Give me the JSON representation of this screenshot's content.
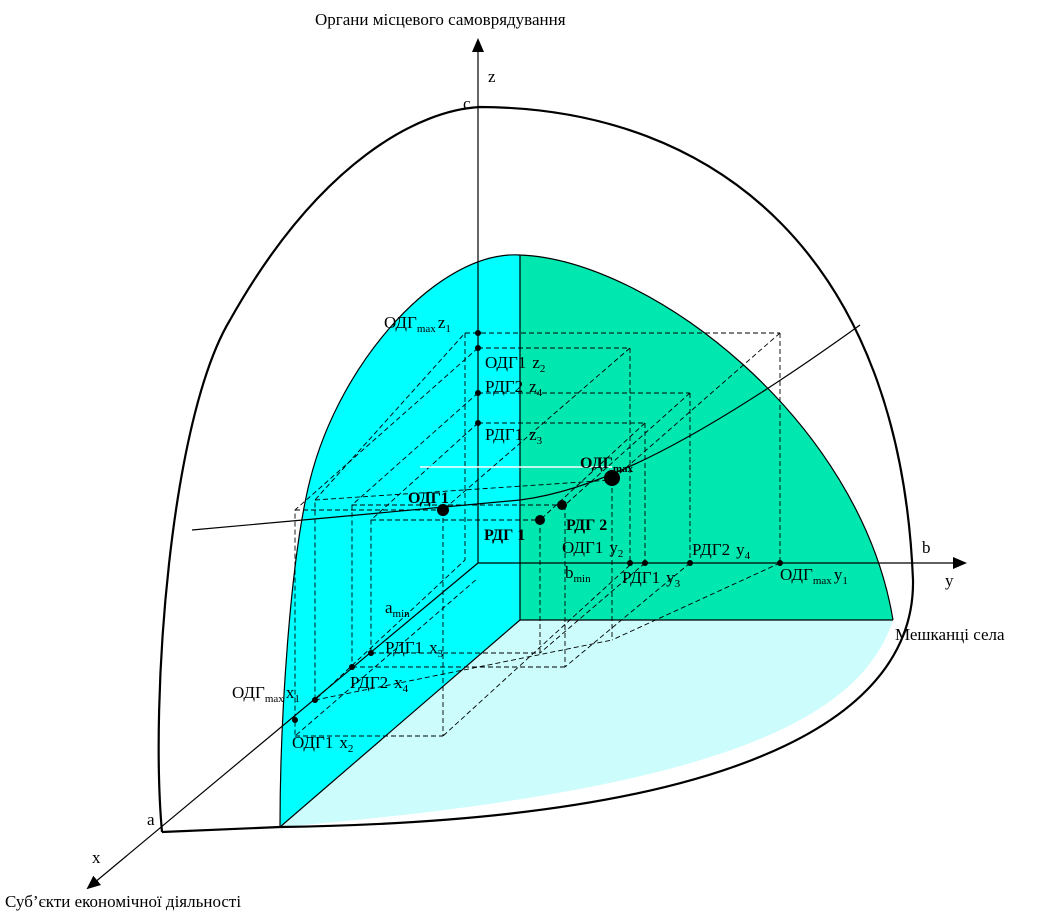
{
  "title_axis_z": "Органи  місцевого самоврядування",
  "title_axis_y": "Мешканці села",
  "title_axis_x": "Суб’єкти економічної діяльності",
  "axis_letters": {
    "x": "x",
    "y": "y",
    "z": "z",
    "a": "a",
    "b": "b",
    "c": "c"
  },
  "min_labels": {
    "a_base": "a",
    "a_sub": "min",
    "b_base": "b",
    "b_sub": "min"
  },
  "points": {
    "odg1": "ОДГ1",
    "odg_max_base": "ОДГ",
    "odg_max_sub": "max",
    "rdg1": "РДГ 1",
    "rdg2": "РДГ 2"
  },
  "z_ticks": [
    {
      "base": "ОДГ",
      "sub": "max",
      "var": "z",
      "idx": "1"
    },
    {
      "base": "ОДГ1",
      "sub": "",
      "var": "z",
      "idx": "2"
    },
    {
      "base": "РДГ2",
      "sub": "",
      "var": "z",
      "idx": "4"
    },
    {
      "base": "РДГ1",
      "sub": "",
      "var": "z",
      "idx": "3"
    }
  ],
  "y_ticks": [
    {
      "base": "ОДГ1",
      "sub": "",
      "var": "y",
      "idx": "2"
    },
    {
      "base": "РДГ1",
      "sub": "",
      "var": "y",
      "idx": "3"
    },
    {
      "base": "РДГ2",
      "sub": "",
      "var": "y",
      "idx": "4"
    },
    {
      "base": "ОДГ",
      "sub": "max",
      "var": "y",
      "idx": "1"
    }
  ],
  "x_ticks": [
    {
      "base": "РДГ1",
      "sub": "",
      "var": "x",
      "idx": "3"
    },
    {
      "base": "РДГ2",
      "sub": "",
      "var": "x",
      "idx": "4"
    },
    {
      "base": "ОДГ",
      "sub": "max",
      "var": "x",
      "idx": "1"
    },
    {
      "base": "ОДГ1",
      "sub": "",
      "var": "x",
      "idx": "2"
    }
  ],
  "colors": {
    "face_x": "#00ffff",
    "face_y": "#00e8b0",
    "face_floor": "#ccfcfc",
    "line": "#000000"
  }
}
